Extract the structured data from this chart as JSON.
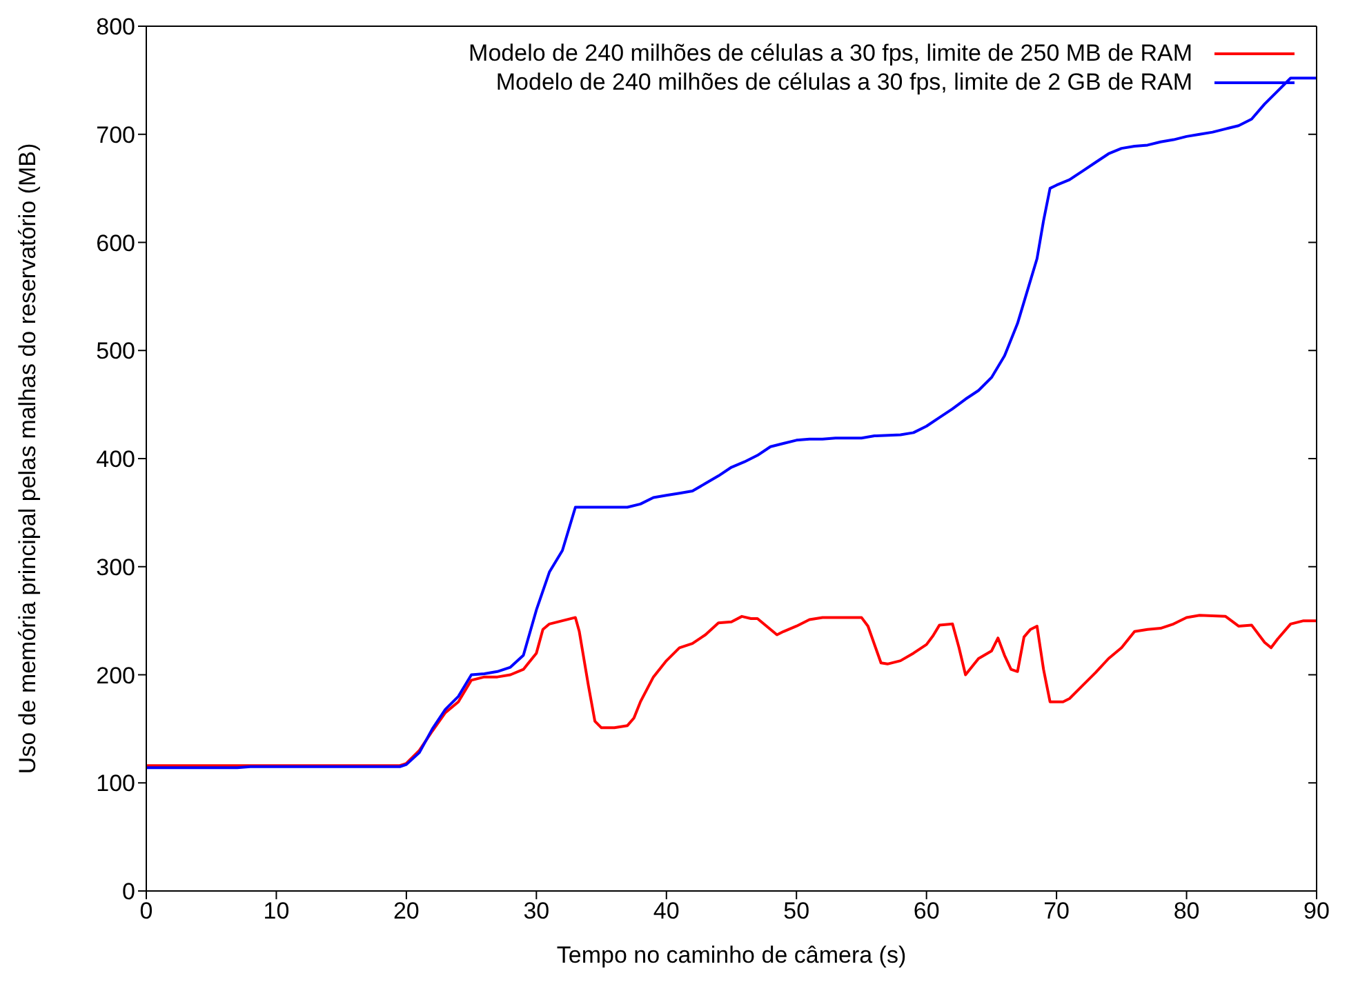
{
  "chart_data": {
    "type": "line",
    "xlabel": "Tempo no caminho de câmera (s)",
    "ylabel": "Uso de memória principal pelas malhas do reservatório (MB)",
    "xlim": [
      0,
      90
    ],
    "xticks": [
      0,
      10,
      20,
      30,
      40,
      50,
      60,
      70,
      80,
      90
    ],
    "ylim": [
      0,
      800
    ],
    "yticks": [
      0,
      100,
      200,
      300,
      400,
      500,
      600,
      700,
      800
    ],
    "legend": "top right",
    "marker": "none",
    "line_style": "solid",
    "series": [
      {
        "name": "Modelo de 240 milhões de células a 30 fps, limite de 250 MB de RAM",
        "color": "#ff0000",
        "x": [
          0,
          7,
          19.5,
          20,
          21,
          22,
          23,
          24,
          25,
          26,
          27,
          28,
          29,
          30,
          30.5,
          31,
          32,
          33,
          33.3,
          34,
          34.5,
          35,
          36,
          37,
          37.5,
          38,
          39,
          40,
          41,
          42,
          43,
          44,
          45,
          45.8,
          46.5,
          47,
          48.5,
          49,
          50,
          51,
          52,
          55,
          55.5,
          56.5,
          57,
          58,
          59,
          60,
          60.5,
          61,
          62,
          62.5,
          63,
          64,
          65,
          65.5,
          66,
          66.5,
          67,
          67.5,
          68,
          68.5,
          69,
          69.5,
          70.5,
          71,
          72,
          73,
          74,
          75,
          76,
          77,
          78,
          79,
          80,
          81,
          83,
          84,
          85,
          86,
          86.5,
          87,
          88,
          89,
          90
        ],
        "values": [
          116,
          116,
          116,
          118,
          130,
          148,
          165,
          175,
          195,
          198,
          198,
          200,
          205,
          220,
          242,
          247,
          250,
          253,
          240,
          190,
          157,
          151,
          151,
          153,
          160,
          175,
          198,
          213,
          225,
          229,
          237,
          248,
          249,
          254,
          252,
          252,
          237,
          240,
          245,
          251,
          253,
          253,
          245,
          211,
          210,
          213,
          220,
          228,
          236,
          246,
          247,
          225,
          200,
          215,
          222,
          234,
          218,
          205,
          203,
          235,
          242,
          245,
          205,
          175,
          175,
          178,
          190,
          202,
          215,
          225,
          240,
          242,
          243,
          247,
          253,
          255,
          254,
          245,
          246,
          230,
          225,
          233,
          247,
          250,
          250
        ]
      },
      {
        "name": "Modelo de 240 milhões de células a 30 fps, limite de 2 GB de RAM",
        "color": "#0000ff",
        "x": [
          0,
          7,
          8,
          19.5,
          20,
          21,
          22,
          23,
          24,
          25,
          26,
          27,
          28,
          29,
          30,
          31,
          32,
          33,
          37,
          38,
          39,
          40,
          41,
          42,
          43,
          44,
          45,
          46,
          47,
          48,
          49,
          50,
          51,
          52,
          53,
          55,
          56,
          58,
          59,
          60,
          61,
          62,
          63,
          64,
          65,
          66,
          67,
          68,
          68.5,
          69,
          69.5,
          70,
          71,
          72,
          73,
          74,
          75,
          76,
          77,
          78,
          79,
          80,
          81,
          82,
          83,
          84,
          85,
          86,
          87,
          88,
          90
        ],
        "values": [
          114,
          114,
          115,
          115,
          117,
          128,
          150,
          168,
          180,
          200,
          201,
          203,
          207,
          218,
          260,
          295,
          315,
          355,
          355,
          358,
          364,
          366,
          368,
          370,
          377,
          384,
          392,
          397,
          403,
          411,
          414,
          417,
          418,
          418,
          419,
          419,
          421,
          422,
          424,
          430,
          438,
          446,
          455,
          463,
          475,
          495,
          525,
          565,
          585,
          620,
          650,
          653,
          658,
          666,
          674,
          682,
          687,
          689,
          690,
          693,
          695,
          698,
          700,
          702,
          705,
          708,
          714,
          728,
          740,
          752,
          752
        ]
      }
    ]
  }
}
